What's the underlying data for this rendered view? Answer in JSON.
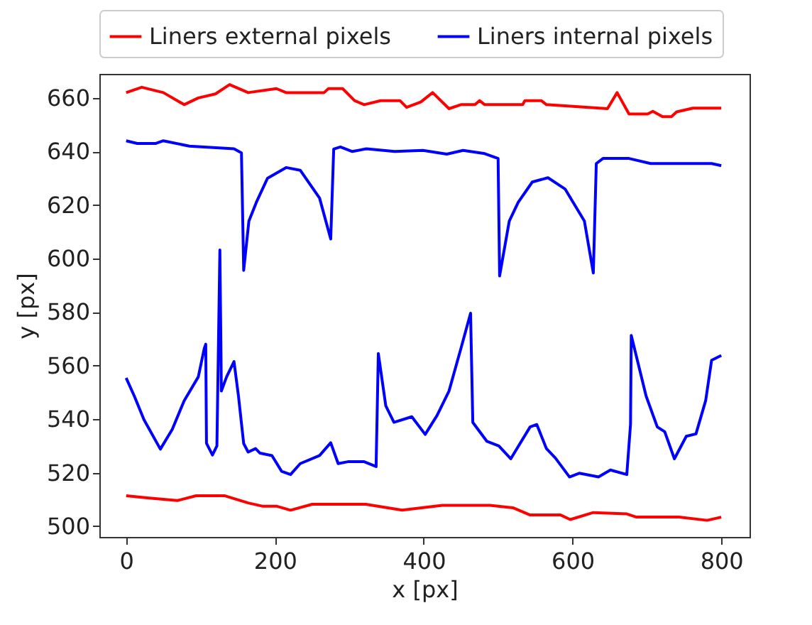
{
  "chart_data": {
    "type": "line",
    "xlabel": "x [px]",
    "ylabel": "y [px]",
    "xlim": [
      -36,
      838
    ],
    "ylim": [
      496,
      669
    ],
    "xticks": [
      0,
      200,
      400,
      600,
      800
    ],
    "yticks": [
      500,
      520,
      540,
      560,
      580,
      600,
      620,
      640,
      660
    ],
    "grid": false,
    "legend": "top",
    "marker": "none",
    "line_style": "solid",
    "series": [
      {
        "name": "Liners external pixels",
        "color": "#ff0000",
        "x": [
          0,
          21,
          50,
          78,
          97,
          120,
          139,
          164,
          202,
          215,
          266,
          272,
          291,
          307,
          320,
          342,
          368,
          377,
          396,
          412,
          434,
          450,
          469,
          475,
          482,
          533,
          536,
          558,
          565,
          647,
          660,
          676,
          701,
          708,
          721,
          733,
          740,
          762,
          800
        ],
        "values": [
          662,
          664,
          662,
          657.5,
          660,
          661.5,
          665,
          662,
          663.5,
          662,
          662,
          663.5,
          663.5,
          659,
          657.5,
          659,
          659,
          656.5,
          658.5,
          662,
          656,
          657.5,
          657.5,
          659,
          657.5,
          657.5,
          659,
          659,
          657.5,
          656,
          662,
          654,
          654,
          655,
          653,
          653,
          654.8,
          656.2,
          656.2
        ]
      },
      {
        "name": "Liners internal pixels",
        "color": "#0000ff",
        "x": [
          0,
          15,
          40,
          50,
          85,
          145,
          155,
          158,
          165,
          175,
          190,
          215,
          234,
          260,
          275,
          279,
          288,
          304,
          323,
          361,
          399,
          431,
          453,
          482,
          500,
          502,
          515,
          527,
          546,
          567,
          590,
          616,
          628,
          632,
          641,
          676,
          705,
          787,
          800
        ],
        "values": [
          644,
          643,
          643,
          644,
          642,
          641,
          639.5,
          595.6,
          614,
          621,
          630,
          634,
          633,
          622.6,
          607.3,
          640.9,
          641.7,
          640,
          641,
          640,
          640.4,
          639,
          640.4,
          639.2,
          637.4,
          593.5,
          614,
          621,
          628.6,
          630.2,
          626,
          614,
          594.6,
          635.5,
          637.4,
          637.4,
          635.5,
          635.5,
          634.7
        ]
      },
      {
        "color": "#0000ff",
        "x": [
          0,
          11,
          24,
          46,
          62,
          78,
          97,
          105,
          107,
          108,
          116,
          122,
          126,
          128,
          135,
          145,
          151,
          158,
          164,
          174,
          180,
          196,
          209,
          221,
          234,
          260,
          275,
          285,
          298,
          320,
          336,
          339,
          349,
          360,
          384,
          402,
          418,
          434,
          450,
          463,
          466,
          485,
          501,
          517,
          543,
          552,
          565,
          577,
          596,
          609,
          635,
          651,
          673,
          678,
          679,
          699,
          714,
          724,
          737,
          753,
          766,
          779,
          787,
          800
        ],
        "values": [
          555.4,
          548.6,
          539.8,
          528.8,
          536.2,
          546.9,
          555.8,
          566.4,
          568,
          531,
          526.6,
          530,
          603.2,
          550.5,
          555.8,
          561.5,
          548.6,
          530.9,
          527.7,
          529,
          527.3,
          526.4,
          520.5,
          519.3,
          523.4,
          526.4,
          531.2,
          523.4,
          524.1,
          524.1,
          522.3,
          564.5,
          545,
          538.8,
          540.9,
          534.3,
          541.4,
          550.5,
          566.4,
          579.6,
          538.8,
          531.7,
          530,
          525.2,
          537.1,
          538,
          529,
          525.5,
          518.4,
          519.8,
          518.4,
          521,
          519.3,
          538,
          571.3,
          548.6,
          537.1,
          535.3,
          525.2,
          533.6,
          534.5,
          546.9,
          562,
          563.8
        ]
      },
      {
        "color": "#ff0000",
        "x": [
          0,
          31,
          69,
          94,
          132,
          164,
          183,
          202,
          221,
          250,
          322,
          371,
          425,
          489,
          520,
          543,
          584,
          597,
          628,
          673,
          686,
          724,
          743,
          781,
          800
        ],
        "values": [
          511.4,
          510.5,
          509.6,
          511.4,
          511.4,
          508.7,
          507.5,
          507.5,
          506,
          508.2,
          508.2,
          506,
          507.8,
          507.8,
          506.9,
          504.2,
          504.2,
          502.5,
          505.1,
          504.6,
          503.4,
          503.4,
          503.4,
          502.2,
          503.4
        ]
      }
    ]
  }
}
